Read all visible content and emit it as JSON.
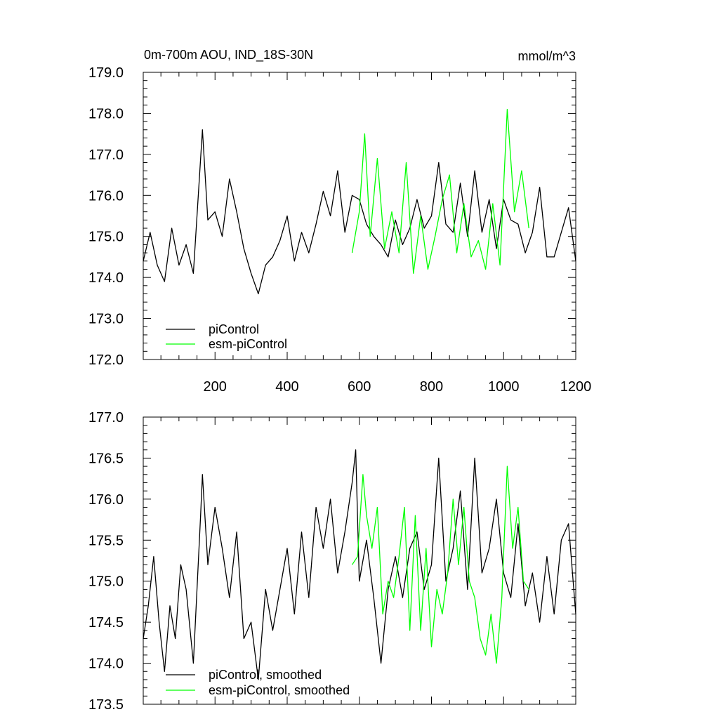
{
  "chart_data": [
    {
      "type": "line",
      "title": "0m-700m AOU, IND_18S-30N",
      "units": "mmol/m^3",
      "xlim": [
        1,
        1200
      ],
      "ylim": [
        172.0,
        179.0
      ],
      "x_ticks": [
        200,
        400,
        600,
        800,
        1000,
        1200
      ],
      "y_ticks": [
        "172.0",
        "173.0",
        "174.0",
        "175.0",
        "176.0",
        "177.0",
        "178.0",
        "179.0"
      ],
      "legend_placement": "bottom-left",
      "series": [
        {
          "name": "piControl",
          "color": "#000000",
          "x": [
            1,
            20,
            40,
            60,
            80,
            100,
            120,
            140,
            165,
            180,
            200,
            220,
            240,
            260,
            280,
            300,
            320,
            340,
            360,
            380,
            400,
            420,
            440,
            460,
            480,
            500,
            520,
            540,
            560,
            580,
            600,
            620,
            640,
            660,
            680,
            700,
            720,
            740,
            760,
            780,
            800,
            820,
            840,
            860,
            880,
            900,
            920,
            940,
            960,
            980,
            1000,
            1020,
            1040,
            1060,
            1080,
            1100,
            1120,
            1140,
            1160,
            1180,
            1200
          ],
          "values": [
            174.4,
            175.1,
            174.3,
            173.9,
            175.2,
            174.3,
            174.8,
            174.1,
            177.6,
            175.4,
            175.6,
            175.0,
            176.4,
            175.6,
            174.7,
            174.1,
            173.6,
            174.3,
            174.5,
            174.9,
            175.5,
            174.4,
            175.1,
            174.6,
            175.3,
            176.1,
            175.5,
            176.6,
            175.1,
            176.0,
            175.9,
            175.3,
            175.0,
            174.8,
            174.5,
            175.4,
            174.8,
            175.2,
            175.9,
            175.2,
            175.5,
            176.8,
            175.3,
            175.1,
            176.3,
            175.0,
            176.6,
            175.1,
            175.9,
            174.7,
            175.9,
            175.4,
            175.3,
            174.6,
            175.1,
            176.2,
            174.5,
            174.5,
            175.1,
            175.7,
            174.4
          ]
        },
        {
          "name": "esm-piControl",
          "color": "#00ff00",
          "x": [
            580,
            600,
            615,
            630,
            650,
            670,
            690,
            710,
            730,
            750,
            770,
            790,
            810,
            830,
            850,
            870,
            890,
            910,
            930,
            950,
            970,
            990,
            1010,
            1030,
            1050,
            1070
          ],
          "values": [
            174.6,
            175.6,
            177.5,
            175.0,
            176.9,
            174.7,
            175.6,
            174.6,
            176.8,
            174.1,
            175.5,
            174.2,
            175.0,
            175.9,
            176.5,
            174.6,
            175.8,
            174.5,
            174.9,
            174.2,
            175.8,
            174.3,
            178.1,
            175.6,
            176.6,
            175.2
          ]
        }
      ]
    },
    {
      "type": "line",
      "title": "",
      "xlim": [
        1,
        1200
      ],
      "ylim": [
        173.5,
        177.0
      ],
      "y_ticks": [
        "173.5",
        "174.0",
        "174.5",
        "175.0",
        "175.5",
        "176.0",
        "176.5",
        "177.0"
      ],
      "legend_placement": "bottom-left",
      "series": [
        {
          "name": "piControl, smoothed",
          "color": "#000000",
          "x": [
            1,
            15,
            30,
            45,
            60,
            75,
            90,
            105,
            120,
            140,
            160,
            165,
            180,
            200,
            220,
            240,
            260,
            280,
            300,
            320,
            340,
            360,
            380,
            400,
            420,
            440,
            460,
            480,
            500,
            520,
            540,
            560,
            580,
            590,
            600,
            620,
            640,
            660,
            680,
            700,
            720,
            740,
            760,
            780,
            800,
            820,
            840,
            860,
            880,
            900,
            920,
            940,
            960,
            980,
            1000,
            1020,
            1040,
            1060,
            1080,
            1100,
            1120,
            1140,
            1160,
            1180,
            1200
          ],
          "values": [
            174.3,
            174.7,
            175.3,
            174.5,
            173.9,
            174.7,
            174.3,
            175.2,
            174.9,
            174.0,
            175.8,
            176.3,
            175.2,
            175.9,
            175.4,
            174.8,
            175.6,
            174.3,
            174.5,
            173.8,
            174.9,
            174.4,
            174.9,
            175.4,
            174.6,
            175.6,
            174.8,
            175.9,
            175.4,
            176.0,
            175.1,
            175.6,
            176.2,
            176.6,
            175.0,
            175.5,
            174.8,
            174.0,
            174.9,
            175.3,
            174.8,
            175.4,
            175.6,
            174.9,
            175.2,
            176.5,
            175.0,
            175.4,
            176.1,
            174.9,
            176.5,
            175.1,
            175.4,
            176.0,
            175.1,
            174.8,
            175.7,
            174.7,
            175.1,
            174.5,
            175.3,
            174.6,
            175.5,
            175.7,
            174.6
          ]
        },
        {
          "name": "esm-piControl, smoothed",
          "color": "#00ff00",
          "x": [
            580,
            595,
            610,
            620,
            635,
            650,
            665,
            680,
            695,
            710,
            725,
            740,
            755,
            770,
            785,
            800,
            815,
            830,
            845,
            860,
            875,
            890,
            905,
            920,
            935,
            950,
            965,
            980,
            995,
            1010,
            1025,
            1040,
            1055,
            1070
          ],
          "values": [
            175.2,
            175.3,
            176.3,
            175.8,
            175.4,
            175.9,
            174.6,
            175.0,
            174.8,
            175.3,
            175.9,
            174.4,
            175.8,
            174.4,
            175.4,
            174.2,
            174.9,
            174.6,
            175.1,
            176.0,
            175.2,
            175.9,
            175.0,
            174.8,
            174.3,
            174.1,
            174.6,
            174.0,
            174.8,
            176.4,
            175.4,
            175.9,
            175.0,
            174.9
          ]
        }
      ]
    }
  ]
}
